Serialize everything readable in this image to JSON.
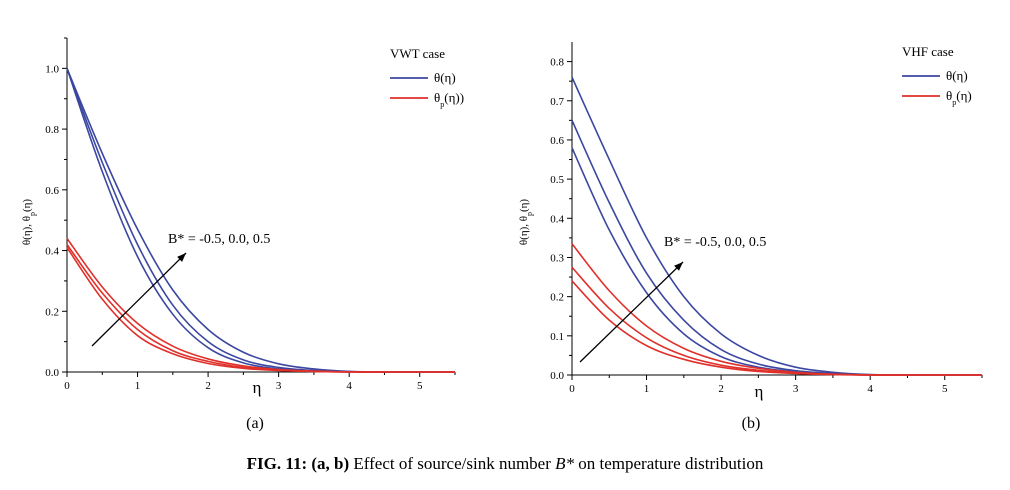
{
  "caption": {
    "bold": "FIG. 11: (a, b)",
    "text_before": " Effect of source/sink number ",
    "symbol": "B*",
    "text_after": " on temperature distribution"
  },
  "colors": {
    "theta": "#3b47a0",
    "theta_p": "#e0302a"
  },
  "chart_data": [
    {
      "type": "line",
      "panel_label": "(a)",
      "legend_title": "VWT case",
      "legend_position": "top-right",
      "xlabel": "η",
      "ylabel": "θ(η),  θ_p(η)",
      "xlim": [
        0,
        5.5
      ],
      "ylim": [
        0,
        1.1
      ],
      "xticks": [
        "0",
        "1",
        "2",
        "3",
        "4",
        "5"
      ],
      "yticks": [
        "0.0",
        "0.2",
        "0.4",
        "0.6",
        "0.8",
        "1.0"
      ],
      "annotation": "B* = -0.5, 0.0, 0.5",
      "x": [
        0,
        0.5,
        1.0,
        1.5,
        2.0,
        2.5,
        3.0,
        3.5,
        4.0,
        4.5,
        5.0,
        5.5
      ],
      "series": [
        {
          "name": "θ(η)",
          "group": "theta",
          "values": [
            1.0,
            0.66,
            0.38,
            0.19,
            0.08,
            0.03,
            0.01,
            0.003,
            0.001,
            0,
            0,
            0
          ]
        },
        {
          "group": "theta",
          "values": [
            1.0,
            0.69,
            0.42,
            0.22,
            0.1,
            0.04,
            0.015,
            0.005,
            0.001,
            0,
            0,
            0
          ]
        },
        {
          "group": "theta",
          "values": [
            1.0,
            0.72,
            0.47,
            0.27,
            0.14,
            0.065,
            0.027,
            0.01,
            0.002,
            0,
            0,
            0
          ]
        },
        {
          "name": "θ_p(η))",
          "group": "theta_p",
          "values": [
            0.41,
            0.24,
            0.12,
            0.06,
            0.028,
            0.012,
            0.005,
            0.002,
            0,
            0,
            0,
            0
          ]
        },
        {
          "group": "theta_p",
          "values": [
            0.42,
            0.26,
            0.14,
            0.07,
            0.035,
            0.015,
            0.006,
            0.002,
            0,
            0,
            0,
            0
          ]
        },
        {
          "group": "theta_p",
          "values": [
            0.44,
            0.28,
            0.16,
            0.085,
            0.043,
            0.02,
            0.008,
            0.003,
            0,
            0,
            0,
            0
          ]
        }
      ]
    },
    {
      "type": "line",
      "panel_label": "(b)",
      "legend_title": "VHF case",
      "legend_position": "top-right",
      "xlabel": "η",
      "ylabel": "θ(η),  θ_p(η)",
      "xlim": [
        0,
        5.5
      ],
      "ylim": [
        0,
        0.85
      ],
      "xticks": [
        "0",
        "1",
        "2",
        "3",
        "4",
        "5"
      ],
      "yticks": [
        "0.0",
        "0.1",
        "0.2",
        "0.3",
        "0.4",
        "0.5",
        "0.6",
        "0.7",
        "0.8"
      ],
      "annotation": "B* = -0.5, 0.0, 0.5",
      "x": [
        0,
        0.5,
        1.0,
        1.5,
        2.0,
        2.5,
        3.0,
        3.5,
        4.0,
        4.5,
        5.0,
        5.5
      ],
      "series": [
        {
          "name": "θ(η)",
          "group": "theta",
          "values": [
            0.58,
            0.37,
            0.21,
            0.105,
            0.047,
            0.02,
            0.008,
            0.003,
            0,
            0,
            0,
            0
          ]
        },
        {
          "group": "theta",
          "values": [
            0.65,
            0.44,
            0.26,
            0.14,
            0.065,
            0.028,
            0.011,
            0.004,
            0,
            0,
            0,
            0
          ]
        },
        {
          "group": "theta",
          "values": [
            0.76,
            0.55,
            0.35,
            0.2,
            0.105,
            0.05,
            0.02,
            0.007,
            0.001,
            0,
            0,
            0
          ]
        },
        {
          "name": "θ_p(η)",
          "group": "theta_p",
          "values": [
            0.24,
            0.14,
            0.075,
            0.04,
            0.02,
            0.009,
            0.004,
            0.001,
            0,
            0,
            0,
            0
          ]
        },
        {
          "group": "theta_p",
          "values": [
            0.275,
            0.17,
            0.095,
            0.05,
            0.025,
            0.012,
            0.005,
            0.002,
            0,
            0,
            0,
            0
          ]
        },
        {
          "group": "theta_p",
          "values": [
            0.335,
            0.215,
            0.125,
            0.068,
            0.035,
            0.017,
            0.007,
            0.002,
            0,
            0,
            0,
            0
          ]
        }
      ]
    }
  ]
}
